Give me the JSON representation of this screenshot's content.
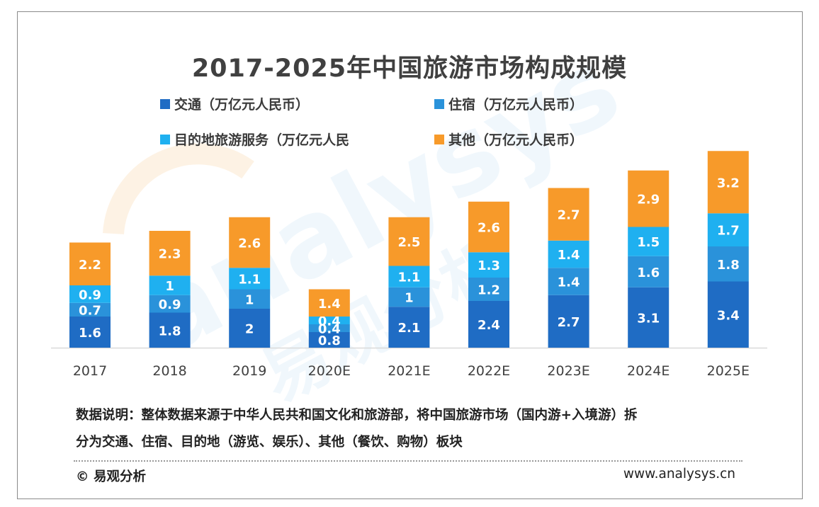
{
  "chart_data": {
    "type": "bar",
    "stacked": true,
    "title": "2017-2025年中国旅游市场构成规模",
    "categories": [
      "2017",
      "2018",
      "2019",
      "2020E",
      "2021E",
      "2022E",
      "2023E",
      "2024E",
      "2025E"
    ],
    "series": [
      {
        "name": "交通（万亿元人民币）",
        "color": "#1f6cc4",
        "values": [
          1.6,
          1.8,
          2,
          0.8,
          2.1,
          2.4,
          2.7,
          3.1,
          3.4
        ]
      },
      {
        "name": "住宿（万亿元人民币）",
        "color": "#2a92da",
        "values": [
          0.7,
          0.9,
          1,
          0.4,
          1,
          1.2,
          1.4,
          1.6,
          1.8
        ]
      },
      {
        "name": "目的地旅游服务（万亿元人民",
        "color": "#1fb0f0",
        "values": [
          0.9,
          1,
          1.1,
          0.4,
          1.1,
          1.3,
          1.4,
          1.5,
          1.7
        ]
      },
      {
        "name": "其他（万亿元人民币）",
        "color": "#f79a2a",
        "values": [
          2.2,
          2.3,
          2.6,
          1.4,
          2.5,
          2.6,
          2.7,
          2.9,
          3.2
        ]
      }
    ],
    "legend": "top",
    "grid": false
  },
  "note": {
    "line1": "数据说明：整体数据来源于中华人民共和国文化和旅游部，将中国旅游市场（国内游+入境游）拆",
    "line2": "分为交通、住宿、目的地（游览、娱乐）、其他（餐饮、购物）板块"
  },
  "footer": {
    "copyright": "© 易观分析",
    "website": "www.analysys.cn"
  },
  "watermark": {
    "text": "analysys",
    "subtext": "易观分析"
  }
}
